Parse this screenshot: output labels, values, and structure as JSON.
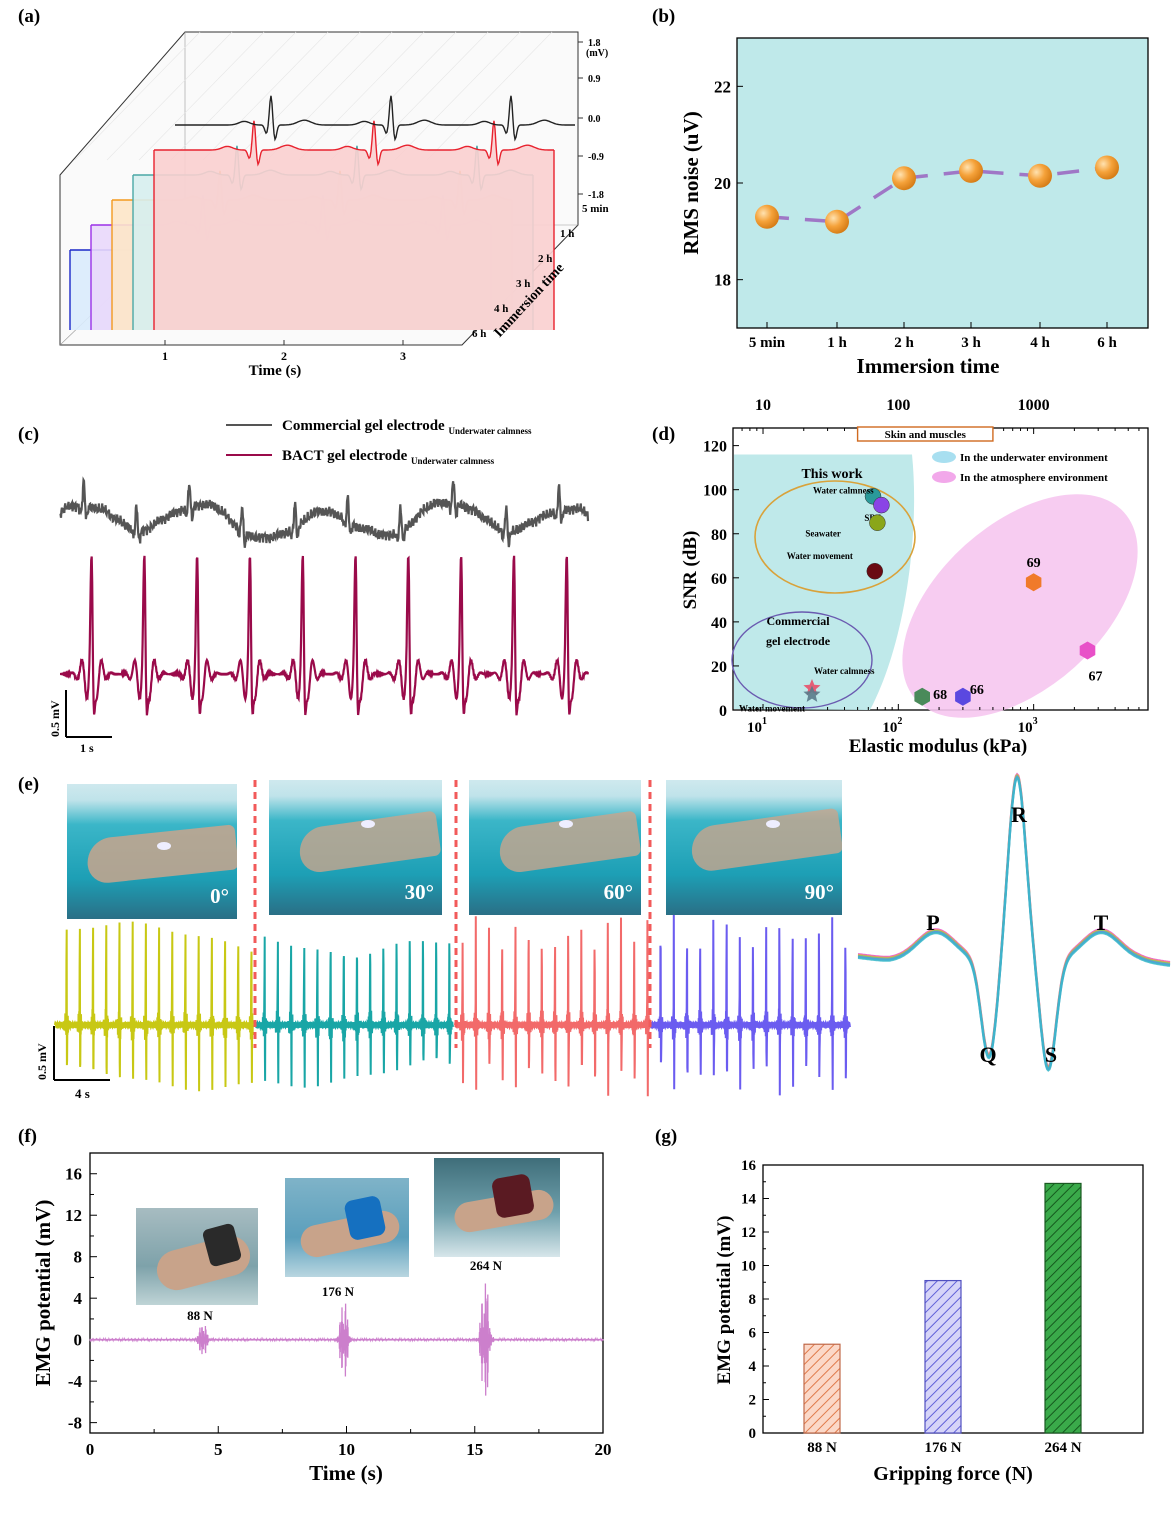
{
  "panels": {
    "a": "(a)",
    "b": "(b)",
    "c": "(c)",
    "d": "(d)",
    "e": "(e)",
    "f": "(f)",
    "g": "(g)"
  },
  "colors": {
    "black": "#222222",
    "red": "#e8222e",
    "teal": "#4aa8a6",
    "orange": "#f39a1f",
    "purple": "#9b30e8",
    "blue": "#1a28c8",
    "cyan_bg": "#bfe9ea",
    "marker": "#f3a23b",
    "line_b": "#9f77c6",
    "pink": "#f6c6f0",
    "wine": "#9a0a4a",
    "gray_sig": "#555555",
    "yellow": "#c8c814",
    "teal_e": "#19a6a6",
    "red_e": "#f26a6a",
    "blue_e": "#6b5cf0",
    "emg": "#cc7fcc"
  },
  "chart_data": [
    {
      "panel": "a",
      "type": "line",
      "xlabel": "Time (s)",
      "xticks": [
        "1",
        "2",
        "3"
      ],
      "zlabel": "Immersion time",
      "zticks": [
        "5 min",
        "1 h",
        "2 h",
        "3 h",
        "4 h",
        "6 h"
      ],
      "yunit": "(mV)",
      "yticks": [
        "1.8",
        "0.9",
        "0.0",
        "-0.9",
        "-1.8"
      ],
      "series": [
        {
          "name": "5 min",
          "color": "#222222",
          "fill": "none"
        },
        {
          "name": "1 h",
          "color": "#e8222e",
          "fill": "#f9cfcf"
        },
        {
          "name": "2 h",
          "color": "#4aa8a6",
          "fill": "#d6eeee"
        },
        {
          "name": "3 h",
          "color": "#f39a1f",
          "fill": "#fde6c8"
        },
        {
          "name": "4 h",
          "color": "#9b30e8",
          "fill": "#e9d8fb"
        },
        {
          "name": "6 h",
          "color": "#1a28c8",
          "fill": "#d9ebfc"
        }
      ]
    },
    {
      "panel": "b",
      "type": "line",
      "xlabel": "Immersion time",
      "ylabel": "RMS noise (uV)",
      "categories": [
        "5 min",
        "1 h",
        "2 h",
        "3 h",
        "4 h",
        "6 h"
      ],
      "values": [
        19.3,
        19.2,
        20.1,
        20.25,
        20.15,
        20.32
      ],
      "yticks": [
        "18",
        "20",
        "22"
      ],
      "ylim": [
        17,
        23
      ]
    },
    {
      "panel": "c",
      "type": "line",
      "series": [
        {
          "name": "Commercial gel electrode",
          "sub": "Underwater calmness",
          "color": "#555555"
        },
        {
          "name": "BACT gel electrode",
          "sub": "Underwater calmness",
          "color": "#9a0a4a"
        }
      ],
      "scale_y": "0.5 mV",
      "scale_x": "1 s"
    },
    {
      "panel": "d",
      "type": "scatter",
      "xlabel": "Elastic modulus (kPa)",
      "ylabel": "SNR (dB)",
      "xscale": "log",
      "xlim": [
        6,
        7000
      ],
      "ylim": [
        0,
        128
      ],
      "yticks": [
        "0",
        "20",
        "40",
        "60",
        "80",
        "100",
        "120"
      ],
      "xticks_bottom": [
        "10",
        "10",
        "10"
      ],
      "xticks_bottom_exp": [
        "1",
        "2",
        "3"
      ],
      "xticks_top": [
        "10",
        "100",
        "1000"
      ],
      "band_label": "Skin and muscles",
      "legend": [
        "In the underwater environment",
        "In the atmosphere environment"
      ],
      "this_work": "This work",
      "commercial_l1": "Commercial",
      "commercial_l2": "gel electrode",
      "points_this": [
        {
          "label": "Water calmness",
          "x": 65,
          "y": 97,
          "color": "#2a9a9a"
        },
        {
          "label": "SBF",
          "x": 75,
          "y": 93,
          "color": "#8a44e6"
        },
        {
          "label": "Seawater",
          "x": 70,
          "y": 85,
          "color": "#8aa61a"
        },
        {
          "label": "Water movement",
          "x": 67,
          "y": 63,
          "color": "#6a0a12"
        }
      ],
      "points_commercial": [
        {
          "label": "Water calmness",
          "x": 23,
          "y": 10,
          "color": "#e8506a"
        },
        {
          "label": "Water movement",
          "x": 23,
          "y": 7,
          "color": "#5a7a8a"
        }
      ],
      "points_ref": [
        {
          "label": "69",
          "x": 1000,
          "y": 58,
          "color": "#f07a2a"
        },
        {
          "label": "67",
          "x": 2500,
          "y": 27,
          "color": "#e850c8"
        },
        {
          "label": "68",
          "x": 150,
          "y": 6,
          "color": "#4a8a5a"
        },
        {
          "label": "66",
          "x": 300,
          "y": 6,
          "color": "#5a48e0"
        }
      ]
    },
    {
      "panel": "e",
      "type": "line",
      "angles": [
        "0°",
        "30°",
        "60°",
        "90°"
      ],
      "scale_y": "0.5 mV",
      "scale_x": "4 s",
      "waves": [
        "P",
        "Q",
        "R",
        "S",
        "T"
      ]
    },
    {
      "panel": "f",
      "type": "line",
      "xlabel": "Time (s)",
      "ylabel": "EMG potential (mV)",
      "xlim": [
        0,
        20
      ],
      "ylim": [
        -9,
        18
      ],
      "xticks": [
        "0",
        "5",
        "10",
        "15",
        "20"
      ],
      "yticks": [
        "-8",
        "-4",
        "0",
        "4",
        "8",
        "12",
        "16"
      ],
      "bursts": [
        {
          "label": "88 N",
          "t": 4.4
        },
        {
          "label": "176 N",
          "t": 9.9
        },
        {
          "label": "264 N",
          "t": 15.4
        }
      ]
    },
    {
      "panel": "g",
      "type": "bar",
      "xlabel": "Gripping force (N)",
      "ylabel": "EMG potential (mV)",
      "categories": [
        "88 N",
        "176 N",
        "264 N"
      ],
      "values": [
        5.3,
        9.1,
        14.9
      ],
      "ylim": [
        0,
        16
      ],
      "yticks": [
        "0",
        "2",
        "4",
        "6",
        "8",
        "10",
        "12",
        "14",
        "16"
      ],
      "colors": [
        "#f0906a",
        "#7070e8",
        "#2aa040"
      ]
    }
  ]
}
